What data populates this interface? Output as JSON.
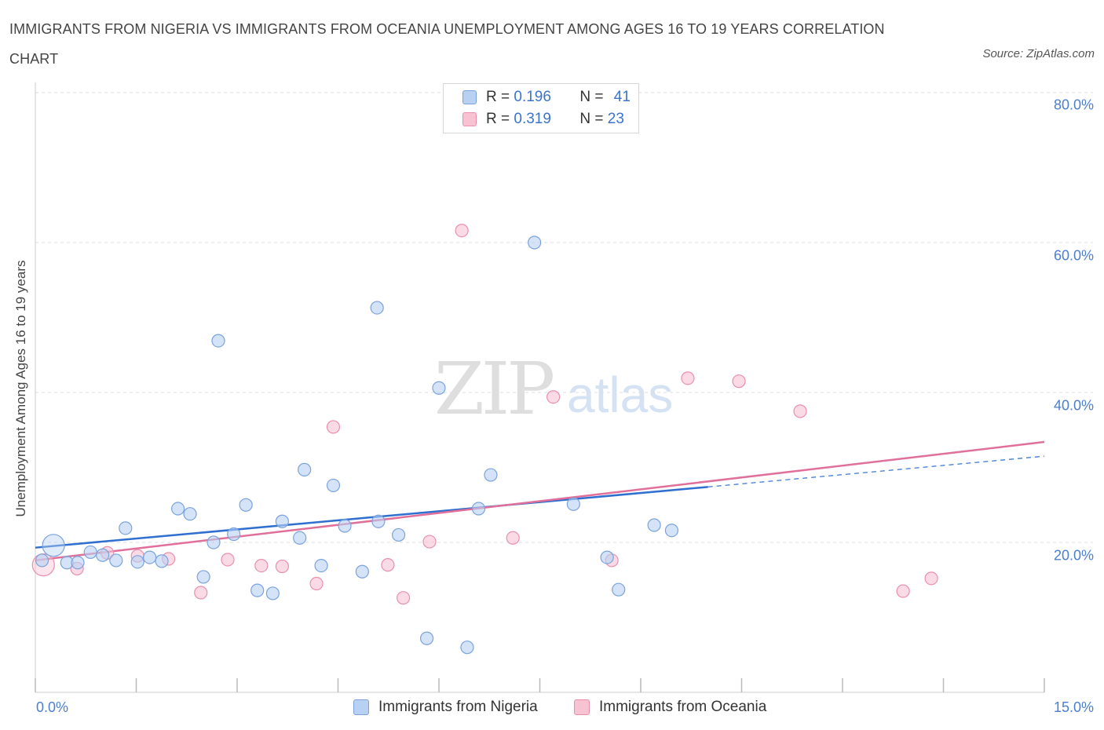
{
  "title": "IMMIGRANTS FROM NIGERIA VS IMMIGRANTS FROM OCEANIA UNEMPLOYMENT AMONG AGES 16 TO 19 YEARS CORRELATION CHART",
  "source": "Source: ZipAtlas.com",
  "watermark": {
    "zip": "ZIP",
    "atlas": "atlas"
  },
  "legend": {
    "r_label": "R =",
    "n_label": "N =",
    "rows": [
      {
        "r": "0.196",
        "n": "41"
      },
      {
        "r": "0.319",
        "n": "23"
      }
    ]
  },
  "colors": {
    "nigeria_fill": "#b8d1f3",
    "nigeria_stroke": "#7aa3dc",
    "nigeria_line": "#2f6fcf",
    "oceania_fill": "#f7c3d3",
    "oceania_stroke": "#e98fac",
    "oceania_line": "#e0709a",
    "axis_text": "#4a7fd0"
  },
  "chart_data": {
    "type": "scatter",
    "title": "IMMIGRANTS FROM NIGERIA VS IMMIGRANTS FROM OCEANIA UNEMPLOYMENT AMONG AGES 16 TO 19 YEARS CORRELATION CHART",
    "xlabel": "",
    "ylabel": "Unemployment Among Ages 16 to 19 years",
    "xlim": [
      0,
      15
    ],
    "ylim": [
      0,
      80
    ],
    "x_tick_labels": [
      "0.0%",
      "15.0%"
    ],
    "y_ticks": [
      20,
      40,
      60,
      80
    ],
    "y_tick_labels": [
      "20.0%",
      "40.0%",
      "60.0%",
      "80.0%"
    ],
    "grid": true,
    "legend_position": "top-center",
    "series": [
      {
        "name": "Immigrants from Nigeria",
        "r": 0.196,
        "n": 41,
        "trend": {
          "x0": 0,
          "y0": 19.3,
          "x1": 10.0,
          "y1": 27.4,
          "dashed_to_x": 15,
          "dashed_to_y": 31.5
        },
        "points": [
          {
            "x": 0.27,
            "y": 19.6,
            "big": true
          },
          {
            "x": 0.47,
            "y": 17.3
          },
          {
            "x": 0.63,
            "y": 17.3
          },
          {
            "x": 0.82,
            "y": 18.7
          },
          {
            "x": 1.0,
            "y": 18.3
          },
          {
            "x": 1.2,
            "y": 17.6
          },
          {
            "x": 1.34,
            "y": 21.9
          },
          {
            "x": 1.52,
            "y": 17.4
          },
          {
            "x": 1.7,
            "y": 18.0
          },
          {
            "x": 1.88,
            "y": 17.5
          },
          {
            "x": 2.12,
            "y": 24.5
          },
          {
            "x": 2.3,
            "y": 23.8
          },
          {
            "x": 2.5,
            "y": 15.4
          },
          {
            "x": 2.65,
            "y": 20.0
          },
          {
            "x": 2.72,
            "y": 46.9
          },
          {
            "x": 2.95,
            "y": 21.1
          },
          {
            "x": 3.13,
            "y": 25.0
          },
          {
            "x": 3.3,
            "y": 13.6
          },
          {
            "x": 3.53,
            "y": 13.2
          },
          {
            "x": 3.67,
            "y": 22.8
          },
          {
            "x": 3.93,
            "y": 20.6
          },
          {
            "x": 4.0,
            "y": 29.7
          },
          {
            "x": 4.25,
            "y": 16.9
          },
          {
            "x": 4.43,
            "y": 27.6
          },
          {
            "x": 4.6,
            "y": 22.2
          },
          {
            "x": 4.86,
            "y": 16.1
          },
          {
            "x": 5.08,
            "y": 51.3
          },
          {
            "x": 5.1,
            "y": 22.8
          },
          {
            "x": 5.4,
            "y": 21.0
          },
          {
            "x": 5.82,
            "y": 7.2
          },
          {
            "x": 6.0,
            "y": 40.6
          },
          {
            "x": 6.42,
            "y": 6.0
          },
          {
            "x": 6.59,
            "y": 24.5
          },
          {
            "x": 6.77,
            "y": 29.0
          },
          {
            "x": 7.42,
            "y": 60.0
          },
          {
            "x": 8.0,
            "y": 25.1
          },
          {
            "x": 8.5,
            "y": 18.0
          },
          {
            "x": 8.67,
            "y": 13.7
          },
          {
            "x": 9.2,
            "y": 22.3
          },
          {
            "x": 9.46,
            "y": 21.6
          },
          {
            "x": 0.1,
            "y": 17.6
          }
        ]
      },
      {
        "name": "Immigrants from Oceania",
        "r": 0.319,
        "n": 23,
        "trend": {
          "x0": 0,
          "y0": 17.6,
          "x1": 15,
          "y1": 33.4
        },
        "points": [
          {
            "x": 0.12,
            "y": 17.0,
            "big": true
          },
          {
            "x": 0.62,
            "y": 16.5
          },
          {
            "x": 1.07,
            "y": 18.6
          },
          {
            "x": 1.52,
            "y": 18.2
          },
          {
            "x": 1.98,
            "y": 17.8
          },
          {
            "x": 2.46,
            "y": 13.3
          },
          {
            "x": 2.86,
            "y": 17.7
          },
          {
            "x": 3.36,
            "y": 16.9
          },
          {
            "x": 3.67,
            "y": 16.8
          },
          {
            "x": 4.18,
            "y": 14.5
          },
          {
            "x": 4.43,
            "y": 35.4
          },
          {
            "x": 5.24,
            "y": 17.0
          },
          {
            "x": 5.47,
            "y": 12.6
          },
          {
            "x": 5.86,
            "y": 20.1
          },
          {
            "x": 6.34,
            "y": 61.6
          },
          {
            "x": 7.1,
            "y": 20.6
          },
          {
            "x": 7.7,
            "y": 39.4
          },
          {
            "x": 8.57,
            "y": 17.6
          },
          {
            "x": 9.7,
            "y": 41.9
          },
          {
            "x": 10.46,
            "y": 41.5
          },
          {
            "x": 11.37,
            "y": 37.5
          },
          {
            "x": 12.9,
            "y": 13.5
          },
          {
            "x": 13.32,
            "y": 15.2
          }
        ]
      }
    ]
  }
}
